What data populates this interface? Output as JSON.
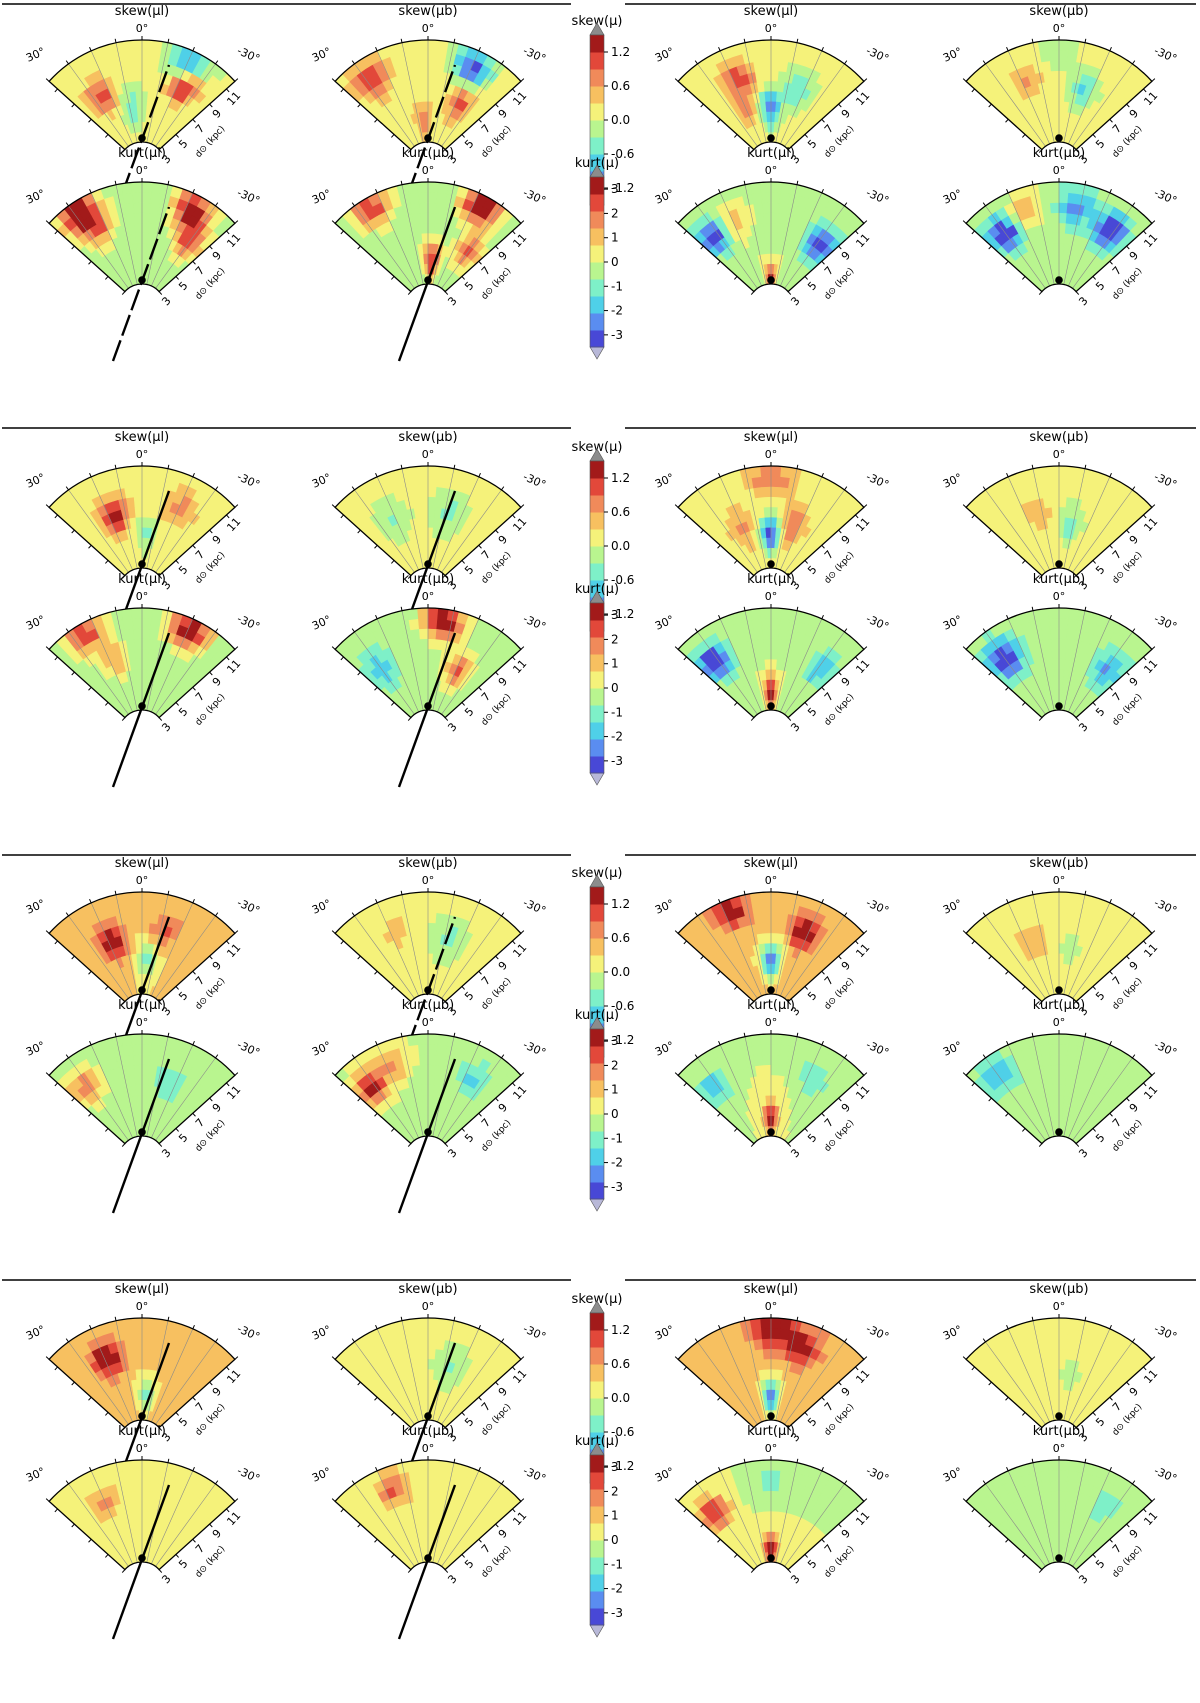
{
  "chart_data": {
    "type": "heatmap",
    "description_free": true,
    "colormap": [
      "#4848d6",
      "#5a8df0",
      "#4fd0e8",
      "#7ef0c8",
      "#b9f58f",
      "#f5f27a",
      "#f7c060",
      "#f08a5a",
      "#e2483a",
      "#a21a1a"
    ],
    "overflow_color": "#8c8c8c",
    "radial_axis": {
      "label": "d⊙ (kpc)",
      "ticks": [
        "3",
        "5",
        "7",
        "9",
        "11"
      ]
    },
    "angular_axis": {
      "ticks": [
        "30°",
        "0°",
        "-30°"
      ]
    },
    "colorbars": [
      {
        "label": "skew(μ)",
        "ticks": [
          "1.2",
          "0.6",
          "0.0",
          "-0.6",
          "-1.2"
        ],
        "range": [
          -1.2,
          1.2
        ]
      },
      {
        "label": "kurt(μ)",
        "ticks": [
          "3",
          "2",
          "1",
          "0",
          "-1",
          "-2",
          "-3"
        ],
        "range": [
          -3,
          3
        ]
      }
    ],
    "rows": [
      {
        "stat": "skew",
        "panels": [
          {
            "title": "skew(μl)",
            "bar": true,
            "bar_style": "dashed",
            "mean": 0.05,
            "blobs": [
              [
                30,
                8,
                0.9
              ],
              [
                -28,
                9,
                1.3
              ],
              [
                -26,
                10.5,
                -1.2
              ],
              [
                10,
                6,
                -0.5
              ]
            ]
          },
          {
            "title": "skew(μb)",
            "bar": true,
            "bar_style": "dashed",
            "mean": 0.1,
            "blobs": [
              [
                -25,
                10.5,
                -1.2
              ],
              [
                34,
                10,
                0.8
              ],
              [
                5,
                5,
                0.6
              ],
              [
                -28,
                7,
                0.7
              ]
            ]
          },
          {
            "title": "skew(μl)",
            "bar": false,
            "bar_style": "none",
            "mean": 0.05,
            "blobs": [
              [
                0,
                6,
                -0.9
              ],
              [
                20,
                9,
                0.9
              ],
              [
                -20,
                8,
                -0.5
              ],
              [
                25,
                6,
                0.5
              ]
            ]
          },
          {
            "title": "skew(μb)",
            "bar": false,
            "bar_style": "none",
            "mean": 0.1,
            "blobs": [
              [
                -18,
                8,
                -0.6
              ],
              [
                20,
                9,
                0.4
              ],
              [
                0,
                11,
                -0.3
              ]
            ]
          }
        ]
      },
      {
        "stat": "kurt",
        "panels": [
          {
            "title": "kurt(μl)",
            "bar": true,
            "bar_style": "dashed",
            "mean": -0.3,
            "blobs": [
              [
                34,
                11,
                3.5
              ],
              [
                -28,
                10.5,
                3.5
              ],
              [
                30,
                9,
                2.2
              ],
              [
                -36,
                8,
                2.5
              ]
            ]
          },
          {
            "title": "kurt(μb)",
            "bar": true,
            "bar_style": "solid",
            "mean": -0.3,
            "blobs": [
              [
                -28,
                11,
                3.4
              ],
              [
                30,
                11,
                2.6
              ],
              [
                -5,
                5,
                2.8
              ],
              [
                -36,
                7,
                2.5
              ]
            ]
          },
          {
            "title": "kurt(μl)",
            "bar": false,
            "bar_style": "none",
            "mean": -0.2,
            "blobs": [
              [
                38,
                9,
                -3
              ],
              [
                -38,
                8,
                -3
              ],
              [
                0,
                3.5,
                2.8
              ],
              [
                25,
                9,
                1.5
              ]
            ]
          },
          {
            "title": "kurt(μb)",
            "bar": false,
            "bar_style": "none",
            "mean": -0.3,
            "blobs": [
              [
                36,
                9,
                -3
              ],
              [
                -34,
                9,
                -3
              ],
              [
                -10,
                10,
                -1.8
              ],
              [
                20,
                10,
                1.5
              ]
            ]
          }
        ]
      },
      {
        "stat": "skew",
        "panels": [
          {
            "title": "skew(μl)",
            "bar": true,
            "bar_style": "solid",
            "mean": 0.1,
            "blobs": [
              [
                20,
                8,
                1.0
              ],
              [
                -5,
                6,
                -0.4
              ],
              [
                -25,
                9,
                0.5
              ]
            ]
          },
          {
            "title": "skew(μb)",
            "bar": true,
            "bar_style": "solid",
            "mean": 0.05,
            "blobs": [
              [
                -15,
                8,
                -0.4
              ],
              [
                25,
                8,
                -0.3
              ]
            ]
          },
          {
            "title": "skew(μl)",
            "bar": false,
            "bar_style": "none",
            "mean": 0.15,
            "blobs": [
              [
                0,
                6,
                -1.2
              ],
              [
                0,
                11,
                0.6
              ],
              [
                -18,
                7,
                0.6
              ],
              [
                25,
                7,
                0.4
              ]
            ]
          },
          {
            "title": "skew(μb)",
            "bar": false,
            "bar_style": "none",
            "mean": 0.1,
            "blobs": [
              [
                -10,
                7,
                -0.5
              ],
              [
                15,
                8,
                0.3
              ]
            ]
          }
        ]
      },
      {
        "stat": "kurt",
        "panels": [
          {
            "title": "kurt(μl)",
            "bar": true,
            "bar_style": "solid",
            "mean": -0.3,
            "blobs": [
              [
                -25,
                11,
                3.4
              ],
              [
                30,
                11,
                2.5
              ],
              [
                20,
                8,
                1.5
              ]
            ]
          },
          {
            "title": "kurt(μb)",
            "bar": true,
            "bar_style": "solid",
            "mean": -0.3,
            "blobs": [
              [
                -8,
                11,
                3.4
              ],
              [
                -25,
                7,
                2.2
              ],
              [
                36,
                8,
                -1.5
              ]
            ]
          },
          {
            "title": "kurt(μl)",
            "bar": false,
            "bar_style": "none",
            "mean": -0.2,
            "blobs": [
              [
                0,
                4.5,
                2.8
              ],
              [
                38,
                9,
                -3
              ],
              [
                -38,
                8,
                -1.5
              ]
            ]
          },
          {
            "title": "kurt(μb)",
            "bar": false,
            "bar_style": "none",
            "mean": -0.4,
            "blobs": [
              [
                36,
                9,
                -3
              ],
              [
                -38,
                8,
                -1.5
              ]
            ]
          }
        ]
      },
      {
        "stat": "skew",
        "panels": [
          {
            "title": "skew(μl)",
            "bar": true,
            "bar_style": "solid",
            "mean": 0.25,
            "blobs": [
              [
                22,
                8,
                1.0
              ],
              [
                -5,
                6,
                -0.6
              ],
              [
                -15,
                9,
                0.5
              ]
            ]
          },
          {
            "title": "skew(μb)",
            "bar": true,
            "bar_style": "dashed",
            "mean": 0.05,
            "blobs": [
              [
                -15,
                8,
                -0.4
              ],
              [
                20,
                9,
                0.3
              ]
            ]
          },
          {
            "title": "skew(μl)",
            "bar": false,
            "bar_style": "none",
            "mean": 0.3,
            "blobs": [
              [
                0,
                6,
                -1.2
              ],
              [
                20,
                11,
                0.8
              ],
              [
                -22,
                9,
                0.9
              ]
            ]
          },
          {
            "title": "skew(μb)",
            "bar": false,
            "bar_style": "none",
            "mean": 0.15,
            "blobs": [
              [
                -10,
                7,
                -0.3
              ],
              [
                20,
                8,
                0.3
              ]
            ]
          }
        ]
      },
      {
        "stat": "kurt",
        "panels": [
          {
            "title": "kurt(μl)",
            "bar": true,
            "bar_style": "solid",
            "mean": -0.3,
            "blobs": [
              [
                38,
                9,
                2.0
              ],
              [
                -20,
                8,
                -0.8
              ]
            ]
          },
          {
            "title": "kurt(μb)",
            "bar": true,
            "bar_style": "solid",
            "mean": -0.2,
            "blobs": [
              [
                38,
                9,
                3.0
              ],
              [
                20,
                10,
                1.5
              ],
              [
                -30,
                9,
                -1.2
              ]
            ]
          },
          {
            "title": "kurt(μl)",
            "bar": false,
            "bar_style": "none",
            "mean": 0.0,
            "blobs": [
              [
                0,
                4.5,
                2.6
              ],
              [
                38,
                9,
                -1.8
              ],
              [
                -28,
                9,
                -1.2
              ]
            ]
          },
          {
            "title": "kurt(μb)",
            "bar": false,
            "bar_style": "none",
            "mean": -0.3,
            "blobs": [
              [
                36,
                10,
                -1.5
              ]
            ]
          }
        ]
      },
      {
        "stat": "skew",
        "panels": [
          {
            "title": "skew(μl)",
            "bar": true,
            "bar_style": "solid",
            "mean": 0.3,
            "blobs": [
              [
                22,
                9,
                1.0
              ],
              [
                -5,
                5,
                -0.6
              ]
            ]
          },
          {
            "title": "skew(μb)",
            "bar": true,
            "bar_style": "solid",
            "mean": 0.05,
            "blobs": [
              [
                -15,
                8,
                -0.3
              ]
            ]
          },
          {
            "title": "skew(μl)",
            "bar": false,
            "bar_style": "none",
            "mean": 0.35,
            "blobs": [
              [
                0,
                5,
                -1.2
              ],
              [
                0,
                11,
                1.0
              ],
              [
                -18,
                10,
                0.8
              ]
            ]
          },
          {
            "title": "skew(μb)",
            "bar": false,
            "bar_style": "none",
            "mean": 0.15,
            "blobs": [
              [
                -10,
                7,
                -0.3
              ]
            ]
          }
        ]
      },
      {
        "stat": "kurt",
        "panels": [
          {
            "title": "kurt(μl)",
            "bar": true,
            "bar_style": "solid",
            "mean": 0.0,
            "blobs": [
              [
                25,
                9,
                1.5
              ]
            ]
          },
          {
            "title": "kurt(μb)",
            "bar": true,
            "bar_style": "solid",
            "mean": 0.0,
            "blobs": [
              [
                20,
                10,
                2.0
              ]
            ]
          },
          {
            "title": "kurt(μl)",
            "bar": false,
            "bar_style": "none",
            "mean": 0.0,
            "blobs": [
              [
                0,
                4,
                3.2
              ],
              [
                0,
                10,
                -1.0
              ],
              [
                38,
                9,
                2.5
              ]
            ]
          },
          {
            "title": "kurt(μb)",
            "bar": false,
            "bar_style": "none",
            "mean": -0.1,
            "blobs": [
              [
                -30,
                9,
                -1.0
              ]
            ]
          }
        ]
      }
    ]
  }
}
